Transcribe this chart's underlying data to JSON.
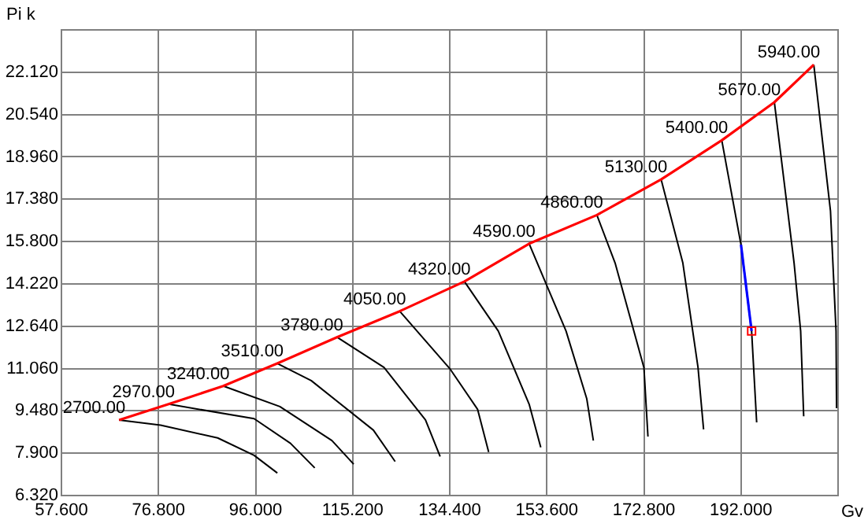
{
  "chart_data": {
    "type": "line",
    "xlabel": "Gv",
    "ylabel": "Pi k",
    "xlim": [
      57.6,
      211.2
    ],
    "ylim": [
      6.32,
      23.7
    ],
    "xticks": [
      {
        "value": 57.6,
        "label": "57.600"
      },
      {
        "value": 76.8,
        "label": "76.800"
      },
      {
        "value": 96,
        "label": "96.000"
      },
      {
        "value": 115.2,
        "label": "115.200"
      },
      {
        "value": 134.4,
        "label": "134.400"
      },
      {
        "value": 153.6,
        "label": "153.600"
      },
      {
        "value": 172.8,
        "label": "172.800"
      },
      {
        "value": 192,
        "label": "192.000"
      }
    ],
    "yticks": [
      {
        "value": 6.32,
        "label": "6.320"
      },
      {
        "value": 7.9,
        "label": "7.900"
      },
      {
        "value": 9.48,
        "label": "9.480"
      },
      {
        "value": 11.06,
        "label": "11.060"
      },
      {
        "value": 12.64,
        "label": "12.640"
      },
      {
        "value": 14.22,
        "label": "14.220"
      },
      {
        "value": 15.8,
        "label": "15.800"
      },
      {
        "value": 17.38,
        "label": "17.380"
      },
      {
        "value": 18.96,
        "label": "18.960"
      },
      {
        "value": 20.54,
        "label": "20.540"
      },
      {
        "value": 22.12,
        "label": "22.120"
      }
    ],
    "grid": true,
    "legend": false,
    "marker": "none",
    "line_style": "solid",
    "series": [
      {
        "name": "2700.00",
        "color": "#000000",
        "x": [
          69.0,
          77.2,
          88.5,
          95.7,
          100.3
        ],
        "values": [
          9.14,
          8.95,
          8.47,
          7.82,
          7.16
        ]
      },
      {
        "name": "2970.00",
        "color": "#000000",
        "x": [
          78.8,
          95.7,
          102.9,
          107.7
        ],
        "values": [
          9.73,
          9.19,
          8.27,
          7.35
        ]
      },
      {
        "name": "3240.00",
        "color": "#000000",
        "x": [
          89.6,
          100.8,
          111.1,
          115.4
        ],
        "values": [
          10.41,
          9.64,
          8.37,
          7.49
        ]
      },
      {
        "name": "3510.00",
        "color": "#000000",
        "x": [
          100.3,
          107.0,
          119.3,
          123.6
        ],
        "values": [
          11.25,
          10.61,
          8.76,
          7.59
        ]
      },
      {
        "name": "3780.00",
        "color": "#000000",
        "x": [
          112.1,
          121.4,
          129.6,
          132.5
        ],
        "values": [
          12.23,
          11.1,
          9.14,
          7.78
        ]
      },
      {
        "name": "4050.00",
        "color": "#000000",
        "x": [
          124.5,
          134.4,
          139.9,
          142.1
        ],
        "values": [
          13.2,
          11.06,
          9.54,
          7.94
        ]
      },
      {
        "name": "4320.00",
        "color": "#000000",
        "x": [
          137.3,
          144.0,
          150.1,
          152.4
        ],
        "values": [
          14.31,
          12.46,
          9.73,
          8.12
        ]
      },
      {
        "name": "4590.00",
        "color": "#000000",
        "x": [
          150.1,
          157.4,
          161.5,
          162.8
        ],
        "values": [
          15.72,
          12.46,
          9.93,
          8.37
        ]
      },
      {
        "name": "4860.00",
        "color": "#000000",
        "x": [
          163.5,
          167.1,
          172.8,
          173.6
        ],
        "values": [
          16.79,
          15.0,
          11.1,
          8.52
        ]
      },
      {
        "name": "5130.00",
        "color": "#000000",
        "x": [
          176.2,
          180.5,
          183.5,
          184.6
        ],
        "values": [
          18.12,
          15.0,
          11.1,
          8.79
        ]
      },
      {
        "name": "5400.00",
        "color": "#000000",
        "x": [
          188.2,
          192.0,
          194.1,
          195.1
        ],
        "values": [
          19.58,
          15.68,
          12.46,
          9.05
        ]
      },
      {
        "name": "5670.00",
        "color": "#000000",
        "x": [
          198.6,
          202.5,
          203.8,
          204.4
        ],
        "values": [
          21.0,
          15.0,
          12.46,
          9.28
        ]
      },
      {
        "name": "5940.00",
        "color": "#000000",
        "x": [
          206.4,
          209.7,
          210.8,
          210.9
        ],
        "values": [
          22.4,
          16.94,
          12.46,
          9.58
        ]
      },
      {
        "color": "#ff0000",
        "x": [
          69.0,
          78.8,
          89.6,
          100.3,
          112.1,
          124.5,
          137.3,
          150.1,
          163.5,
          176.2,
          188.2,
          198.6,
          206.4
        ],
        "values": [
          9.14,
          9.73,
          10.41,
          11.25,
          12.23,
          13.2,
          14.31,
          15.72,
          16.79,
          18.12,
          19.58,
          21.0,
          22.4
        ]
      },
      {
        "color": "#0000ff",
        "x": [
          192.0,
          194.1
        ],
        "values": [
          15.68,
          12.46
        ]
      },
      {
        "type": "scatter",
        "marker": "square",
        "color": "#ff0000",
        "x": [
          194.1
        ],
        "values": [
          12.46
        ]
      }
    ]
  }
}
